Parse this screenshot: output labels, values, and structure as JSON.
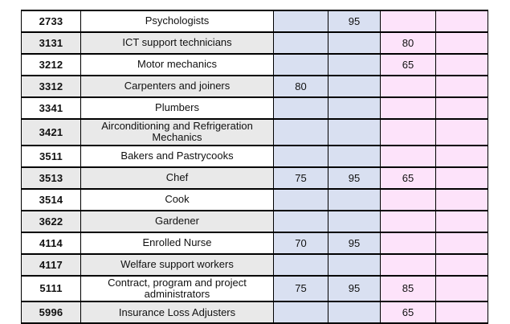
{
  "colors": {
    "blue_column": "#d9e0f1",
    "pink_column": "#fde3fa",
    "shaded_row": "#e9e9e9",
    "border": "#000000",
    "text": "#111111"
  },
  "table": {
    "rows": [
      {
        "code": "2733",
        "occupation": "Psychologists",
        "values": [
          "",
          "95",
          "",
          ""
        ]
      },
      {
        "code": "3131",
        "occupation": "ICT support technicians",
        "values": [
          "",
          "",
          "80",
          ""
        ]
      },
      {
        "code": "3212",
        "occupation": "Motor mechanics",
        "values": [
          "",
          "",
          "65",
          ""
        ]
      },
      {
        "code": "3312",
        "occupation": "Carpenters and joiners",
        "values": [
          "80",
          "",
          "",
          ""
        ]
      },
      {
        "code": "3341",
        "occupation": "Plumbers",
        "values": [
          "",
          "",
          "",
          ""
        ]
      },
      {
        "code": "3421",
        "occupation": "Airconditioning and Refrigeration Mechanics",
        "values": [
          "",
          "",
          "",
          ""
        ]
      },
      {
        "code": "3511",
        "occupation": "Bakers and Pastrycooks",
        "values": [
          "",
          "",
          "",
          ""
        ]
      },
      {
        "code": "3513",
        "occupation": "Chef",
        "values": [
          "75",
          "95",
          "65",
          ""
        ]
      },
      {
        "code": "3514",
        "occupation": "Cook",
        "values": [
          "",
          "",
          "",
          ""
        ]
      },
      {
        "code": "3622",
        "occupation": "Gardener",
        "values": [
          "",
          "",
          "",
          ""
        ]
      },
      {
        "code": "4114",
        "occupation": "Enrolled Nurse",
        "values": [
          "70",
          "95",
          "",
          ""
        ]
      },
      {
        "code": "4117",
        "occupation": "Welfare support workers",
        "values": [
          "",
          "",
          "",
          ""
        ]
      },
      {
        "code": "5111",
        "occupation": "Contract, program and project administrators",
        "values": [
          "75",
          "95",
          "85",
          ""
        ]
      },
      {
        "code": "5996",
        "occupation": "Insurance Loss Adjusters",
        "values": [
          "",
          "",
          "65",
          ""
        ]
      }
    ]
  }
}
